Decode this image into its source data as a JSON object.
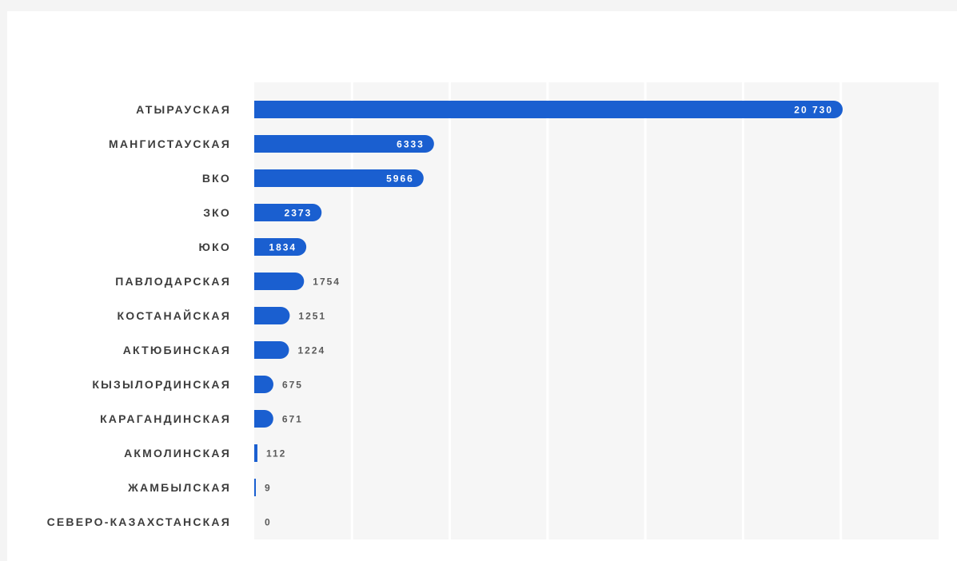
{
  "chart_data": {
    "type": "bar",
    "orientation": "horizontal",
    "categories": [
      "АТЫРАУСКАЯ",
      "МАНГИСТАУСКАЯ",
      "ВКО",
      "ЗКО",
      "ЮКО",
      "ПАВЛОДАРСКАЯ",
      "КОСТАНАЙСКАЯ",
      "АКТЮБИНСКАЯ",
      "КЫЗЫЛОРДИНСКАЯ",
      "КАРАГАНДИНСКАЯ",
      "АКМОЛИНСКАЯ",
      "ЖАМБЫЛСКАЯ",
      "СЕВЕРО-КАЗАХСТАНСКАЯ"
    ],
    "values": [
      20730,
      6333,
      5966,
      2373,
      1834,
      1754,
      1251,
      1224,
      675,
      671,
      112,
      9,
      0
    ],
    "value_labels": [
      "20 730",
      "6333",
      "5966",
      "2373",
      "1834",
      "1754",
      "1251",
      "1224",
      "675",
      "671",
      "112",
      "9",
      "0"
    ],
    "title": "",
    "xlabel": "",
    "ylabel": "",
    "grid": true,
    "legend": "none",
    "colors": {
      "bar": "#1a5fd0",
      "plot_background": "#f6f6f6",
      "gridline": "#ffffff",
      "category_text": "#3d3d3d",
      "value_text_inside": "#ffffff",
      "value_text_outside": "#5a5a5a"
    }
  }
}
